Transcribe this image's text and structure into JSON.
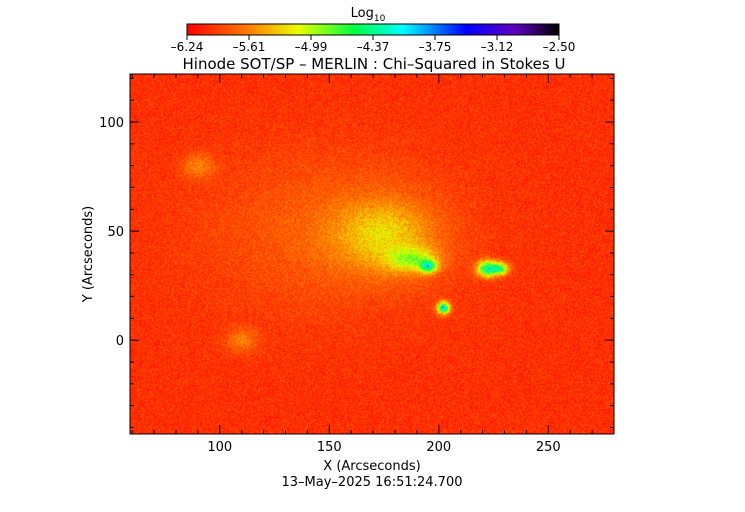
{
  "chart_data": {
    "type": "heatmap",
    "title": "Hinode SOT/SP – MERLIN : Chi–Squared in Stokes U",
    "xlabel": "X (Arcseconds)",
    "ylabel": "Y (Arcseconds)",
    "footer": "13–May–2025 16:51:24.700",
    "xlim": [
      59,
      280
    ],
    "ylim": [
      -43,
      122
    ],
    "x_ticks": [
      100,
      150,
      200,
      250
    ],
    "y_ticks": [
      0,
      50,
      100
    ],
    "colorbar": {
      "label_base": "Log",
      "label_sub": "10",
      "min": -6.24,
      "max": -2.5,
      "ticks": [
        "–6.24",
        "–5.61",
        "–4.99",
        "–4.37",
        "–3.75",
        "–3.12",
        "–2.50"
      ],
      "colormap": "rainbow (red→yellow→green→cyan→blue→violet→black)"
    },
    "field": {
      "background_log10": -6.0,
      "features": [
        {
          "x": 188,
          "y": 37,
          "log10": -5.2,
          "rx": 12,
          "ry": 6
        },
        {
          "x": 195,
          "y": 34,
          "log10": -4.6,
          "rx": 4,
          "ry": 3
        },
        {
          "x": 222,
          "y": 33,
          "log10": -4.3,
          "rx": 5,
          "ry": 4
        },
        {
          "x": 228,
          "y": 33,
          "log10": -4.7,
          "rx": 4,
          "ry": 3
        },
        {
          "x": 202,
          "y": 15,
          "log10": -4.1,
          "rx": 3,
          "ry": 3
        },
        {
          "x": 175,
          "y": 48,
          "log10": -5.4,
          "rx": 25,
          "ry": 18
        },
        {
          "x": 90,
          "y": 80,
          "log10": -5.6,
          "rx": 8,
          "ry": 6
        },
        {
          "x": 110,
          "y": 0,
          "log10": -5.6,
          "rx": 8,
          "ry": 6
        },
        {
          "x": 150,
          "y": 50,
          "log10": -5.75,
          "rx": 60,
          "ry": 40
        }
      ]
    }
  }
}
